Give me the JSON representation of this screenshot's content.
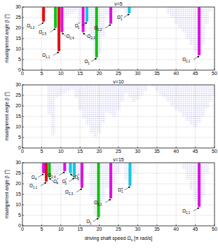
{
  "chart_data": [
    {
      "type": "scatter",
      "title": "v=5",
      "ylabel": "misalignment angle β [°]",
      "xlim": [
        0,
        50
      ],
      "ylim": [
        0,
        30
      ],
      "xticks": [
        0,
        5,
        10,
        15,
        20,
        25,
        30,
        35,
        40,
        45,
        50
      ],
      "yticks": [
        0,
        5,
        10,
        15,
        20,
        25,
        30
      ],
      "grid": true,
      "color": "#3a3ad8",
      "marker": "circle",
      "x": [
        5,
        6,
        9,
        10,
        11,
        12,
        13,
        14,
        15,
        16,
        17,
        18,
        19,
        20,
        21,
        22,
        23,
        24,
        26,
        27,
        28,
        29,
        38,
        39,
        40,
        41,
        42,
        43,
        44,
        45,
        46,
        47,
        48,
        49
      ],
      "low": [
        24,
        27,
        21,
        20,
        25,
        26,
        27,
        28,
        22,
        19,
        22,
        14,
        7,
        8,
        16,
        26,
        22,
        27,
        29,
        27,
        28,
        29,
        27,
        25,
        22,
        20,
        18,
        15,
        12,
        9,
        7,
        12,
        22,
        28
      ],
      "bands": [
        {
          "x": 5.5,
          "low": 23,
          "color": "#e01010",
          "label": {
            "text": "Ω",
            "sub": "1,2"
          }
        },
        {
          "x": 8.6,
          "low": 20,
          "color": "#10c010",
          "label": {
            "text": "Ω",
            "sub": "2,5"
          }
        },
        {
          "x": 9.5,
          "low": 9,
          "color": "#e01010",
          "label": {
            "text": "Ω",
            "sub": "1,1"
          }
        },
        {
          "x": 10.3,
          "low": 18,
          "color": "#e010e0",
          "label": {
            "text": "Ω",
            "sub": "2,4"
          }
        },
        {
          "x": 15.8,
          "low": 18,
          "color": "#e010e0",
          "label": {
            "text": "Ω",
            "sub": "2,3"
          }
        },
        {
          "x": 16.8,
          "low": 23,
          "color": "#10c8e0",
          "label": {
            "text": "Ω",
            "sup": "*",
            "sub": "1"
          }
        },
        {
          "x": 19.3,
          "low": 6,
          "color": "#10c010",
          "label": {
            "text": "Ω",
            "sub": "1"
          }
        },
        {
          "x": 23,
          "low": 22,
          "color": "#e010e0",
          "label": {
            "text": "Ω",
            "sub": "2,2"
          }
        },
        {
          "x": 27.8,
          "low": 27,
          "color": "#10c8e0",
          "label": {
            "text": "Ω",
            "sup": "+",
            "sub": "1"
          }
        },
        {
          "x": 46,
          "low": 7,
          "color": "#e010e0",
          "label": {
            "text": "Ω",
            "sub": "2,1"
          }
        }
      ]
    },
    {
      "type": "scatter",
      "title": "v=10",
      "ylabel": "misalignment angle β [°]",
      "xlim": [
        0,
        50
      ],
      "ylim": [
        0,
        30
      ],
      "xticks": [
        0,
        5,
        10,
        15,
        20,
        25,
        30,
        35,
        40,
        45,
        50
      ],
      "yticks": [
        0,
        5,
        10,
        15,
        20,
        25,
        30
      ],
      "grid": true,
      "color": "#3a3ad8",
      "marker": "circle",
      "x": [
        7,
        8,
        9,
        10,
        11,
        12,
        13,
        14,
        15,
        16,
        17,
        18,
        19,
        20,
        21,
        22,
        23,
        24,
        25,
        26,
        27,
        28,
        29,
        30,
        31,
        32,
        34,
        35,
        36,
        37,
        38,
        39,
        40,
        41,
        42,
        43,
        44,
        45,
        46,
        47,
        48,
        49,
        50
      ],
      "low": [
        16,
        6,
        24,
        25,
        26,
        27,
        28,
        24,
        18,
        14,
        11,
        7,
        5,
        7,
        12,
        17,
        16,
        15,
        18,
        22,
        26,
        24,
        22,
        23,
        25,
        27,
        29,
        27,
        25,
        24,
        22,
        20,
        18,
        17,
        15,
        13,
        11,
        10,
        12,
        15,
        19,
        22,
        25
      ],
      "bands": []
    },
    {
      "type": "scatter",
      "title": "v=15",
      "ylabel": "misalignment angle β [°]",
      "xlabel": {
        "text": "driving shaft speed Ω",
        "sub": "s",
        "after": " [π rad/s]"
      },
      "xlim": [
        0,
        50
      ],
      "ylim": [
        0,
        30
      ],
      "xticks": [
        0,
        5,
        10,
        15,
        20,
        25,
        30,
        35,
        40,
        45,
        50
      ],
      "yticks": [
        0,
        5,
        10,
        15,
        20,
        25,
        30
      ],
      "grid": true,
      "color": "#3a3ad8",
      "marker": "circle",
      "x": [
        5,
        6,
        7,
        8,
        9,
        10,
        11,
        12,
        13,
        14,
        15,
        16,
        18,
        19,
        20,
        21,
        22,
        23,
        24,
        25,
        27,
        28,
        29,
        42,
        43,
        44,
        45,
        46,
        47,
        48
      ],
      "low": [
        26,
        22,
        22,
        25,
        24,
        26,
        24,
        26,
        23,
        25,
        20,
        27,
        14,
        5,
        4,
        12,
        18,
        13,
        20,
        25,
        22,
        19,
        25,
        27,
        22,
        17,
        12,
        9,
        14,
        25
      ],
      "bands": [
        {
          "x": 5.5,
          "low": 25,
          "color": "#e010e0",
          "label": {
            "text": "Ω",
            "sub": "4"
          }
        },
        {
          "x": 6.2,
          "low": 21,
          "color": "#e01010",
          "label": {
            "text": "Ω",
            "sub": "1,1"
          }
        },
        {
          "x": 7,
          "low": 23,
          "color": "#10c010",
          "label": {
            "text": "Ω",
            "sup": "*",
            "sub": "4"
          }
        },
        {
          "x": 11,
          "low": 26,
          "color": "#e010e0",
          "label": {
            "text": "Ω",
            "sub": "2,4"
          }
        },
        {
          "x": 12.5,
          "low": 25,
          "color": "#10c8e0",
          "label": {
            "text": "Ω",
            "sup": "*",
            "sub": "2"
          }
        },
        {
          "x": 13.5,
          "low": 23,
          "color": "#10c8e0",
          "label": {
            "text": "Ω",
            "sup": "*",
            "sub": "1"
          }
        },
        {
          "x": 15.5,
          "low": 18,
          "color": "#e010e0",
          "label": {
            "text": "Ω",
            "sub": "2,3"
          }
        },
        {
          "x": 19.8,
          "low": 4,
          "color": "#10c010",
          "label": {
            "text": "Ω",
            "sub": "1"
          }
        },
        {
          "x": 23,
          "low": 13,
          "color": "#e010e0",
          "label": {
            "text": "Ω",
            "sub": "2,2"
          }
        },
        {
          "x": 28,
          "low": 19,
          "color": "#10c8e0",
          "label": {
            "text": "Ω",
            "sup": "+",
            "sub": "1"
          }
        },
        {
          "x": 46,
          "low": 9,
          "color": "#e010e0",
          "label": {
            "text": "Ω",
            "sub": "2,1"
          }
        }
      ]
    }
  ]
}
